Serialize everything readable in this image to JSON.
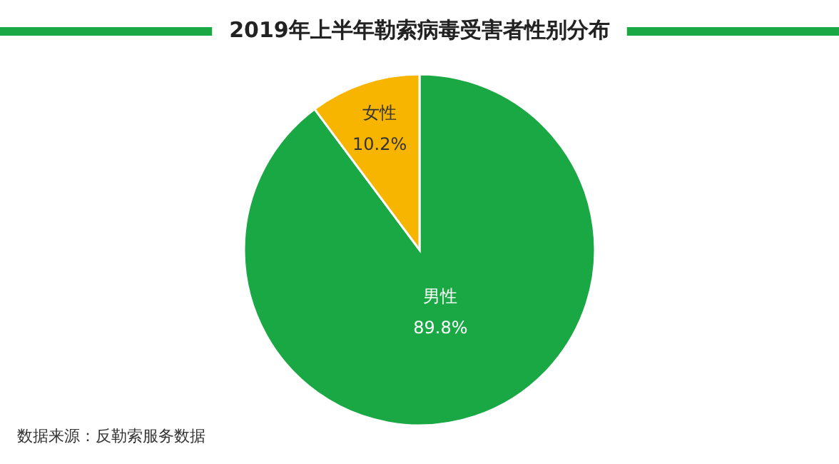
{
  "chart_data": {
    "type": "pie",
    "title": "2019年上半年勒索病毒受害者性别分布",
    "categories": [
      "男性",
      "女性"
    ],
    "values": [
      89.8,
      10.2
    ],
    "colors": [
      "#1aa845",
      "#f7b500"
    ],
    "value_labels": [
      "89.8%",
      "10.2%"
    ],
    "annotations": [
      "数据来源：反勒索服务数据"
    ]
  }
}
